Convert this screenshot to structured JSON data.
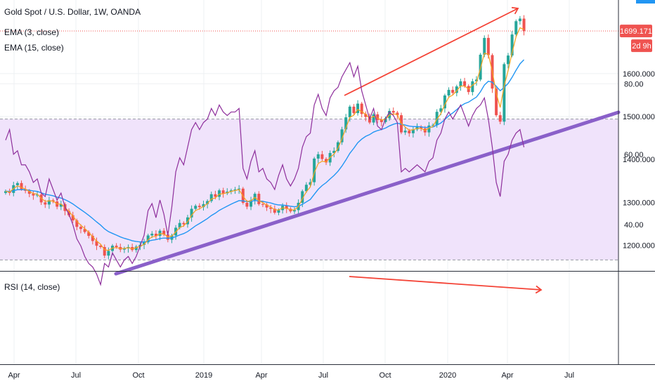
{
  "header": {
    "title": "Gold Spot / U.S. Dollar, 1W, OANDA",
    "ema3_label": "EMA (3, close)",
    "ema15_label": "EMA (15, close)",
    "rsi_label": "RSI (14, close)"
  },
  "price_badges": {
    "last_price": "1699.171",
    "countdown": "2d 9h"
  },
  "colors": {
    "up": "#26a69a",
    "down": "#ef5350",
    "ema3": "#f7a21b",
    "ema15": "#2196f3",
    "trendline": "#8a60c9",
    "arrow": "#f44336",
    "rsi_line": "#8e2f9c",
    "rsi_band": "#f0e3fb"
  },
  "chart_data": [
    {
      "type": "candlestick",
      "title": "Gold Spot / U.S. Dollar, 1W, OANDA",
      "x_ticks": [
        "Apr",
        "Jul",
        "Oct",
        "2019",
        "Apr",
        "Jul",
        "Oct",
        "2020",
        "Apr",
        "Jul"
      ],
      "y_ticks": [
        "1600.000",
        "1500.000",
        "1400.000",
        "1300.000",
        "1200.000"
      ],
      "ylim": [
        1140,
        1755
      ],
      "grid": true,
      "series": [
        {
          "name": "EMA (3, close)"
        },
        {
          "name": "EMA (15, close)"
        }
      ],
      "close_weekly": [
        1326,
        1322,
        1340,
        1345,
        1331,
        1327,
        1320,
        1316,
        1318,
        1300,
        1295,
        1305,
        1302,
        1290,
        1296,
        1280,
        1270,
        1258,
        1243,
        1238,
        1231,
        1222,
        1210,
        1199,
        1196,
        1176,
        1187,
        1199,
        1196,
        1190,
        1193,
        1196,
        1189,
        1197,
        1201,
        1207,
        1223,
        1227,
        1222,
        1234,
        1225,
        1213,
        1223,
        1241,
        1252,
        1249,
        1265,
        1285,
        1292,
        1289,
        1296,
        1303,
        1319,
        1313,
        1328,
        1321,
        1325,
        1328,
        1330,
        1332,
        1299,
        1290,
        1305,
        1320,
        1296,
        1295,
        1288,
        1285,
        1276,
        1282,
        1292,
        1285,
        1279,
        1282,
        1299,
        1326,
        1341,
        1347,
        1402,
        1412,
        1401,
        1393,
        1415,
        1420,
        1440,
        1470,
        1498,
        1523,
        1508,
        1530,
        1506,
        1499,
        1486,
        1505,
        1492,
        1487,
        1496,
        1513,
        1509,
        1503,
        1463,
        1467,
        1461,
        1470,
        1476,
        1472,
        1463,
        1479,
        1480,
        1511,
        1519,
        1549,
        1562,
        1555,
        1570,
        1582,
        1571,
        1557,
        1582,
        1586,
        1644,
        1683,
        1643,
        1565,
        1503,
        1488,
        1622,
        1642,
        1691,
        1722,
        1728,
        1699
      ],
      "ema3_last": 1690,
      "ema15_last": 1635,
      "price_marker": 1699.171
    },
    {
      "type": "line",
      "title": "RSI (14, close)",
      "y_ticks": [
        "80.00",
        "60.00",
        "40.00"
      ],
      "ylim": [
        25,
        87
      ],
      "bands": [
        30,
        70
      ],
      "values": [
        64,
        67,
        60,
        61,
        57,
        57,
        55,
        52,
        53,
        49,
        48,
        53,
        50,
        47,
        49,
        45,
        43,
        40,
        36,
        34,
        31,
        29,
        28,
        26,
        23,
        29,
        28,
        32,
        30,
        28,
        30,
        31,
        29,
        31,
        34,
        37,
        44,
        46,
        42,
        47,
        43,
        37,
        45,
        55,
        59,
        57,
        62,
        67,
        69,
        67,
        69,
        70,
        73,
        71,
        74,
        72,
        71,
        72,
        72,
        73,
        56,
        53,
        58,
        61,
        55,
        56,
        53,
        52,
        50,
        54,
        57,
        53,
        51,
        53,
        56,
        62,
        65,
        66,
        74,
        77,
        73,
        71,
        76,
        78,
        79,
        82,
        84,
        86,
        82,
        85,
        78,
        74,
        70,
        73,
        68,
        67,
        70,
        72,
        71,
        69,
        55,
        56,
        55,
        56,
        57,
        56,
        55,
        58,
        59,
        64,
        66,
        70,
        72,
        70,
        72,
        74,
        71,
        68,
        71,
        73,
        74,
        76,
        70,
        62,
        52,
        48,
        58,
        60,
        64,
        66,
        67,
        62
      ]
    }
  ]
}
